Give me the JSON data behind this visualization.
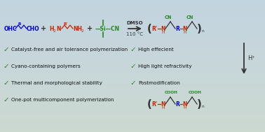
{
  "bg_color": "#ccd8d4",
  "reactant1_color": "#0000cc",
  "reactant2_color": "#cc2200",
  "silyl_color": "#228822",
  "arrow_color": "#333333",
  "product_color_cn": "#228822",
  "product_color_nh": "#cc2200",
  "product_color_r": "#0000cc",
  "product_color_chain": "#333333",
  "bullet_color": "#228822",
  "text_color": "#111111",
  "bullet_points_left": [
    "Catalyst-free and air tolerance polymerization",
    "Cyano-containing polymers",
    "Thermal and morphological stability",
    "One-pot multicomponent polymerization"
  ],
  "bullet_points_right": [
    "High effecient",
    "High light refractivity",
    "Postmodification"
  ],
  "dmso_text": "DMSO",
  "temp_text": "110 °C",
  "hplus_text": "H⁺",
  "check_mark": "✓",
  "font_size_bullet": 5.2,
  "font_size_chem": 5.5,
  "font_size_small": 4.2
}
